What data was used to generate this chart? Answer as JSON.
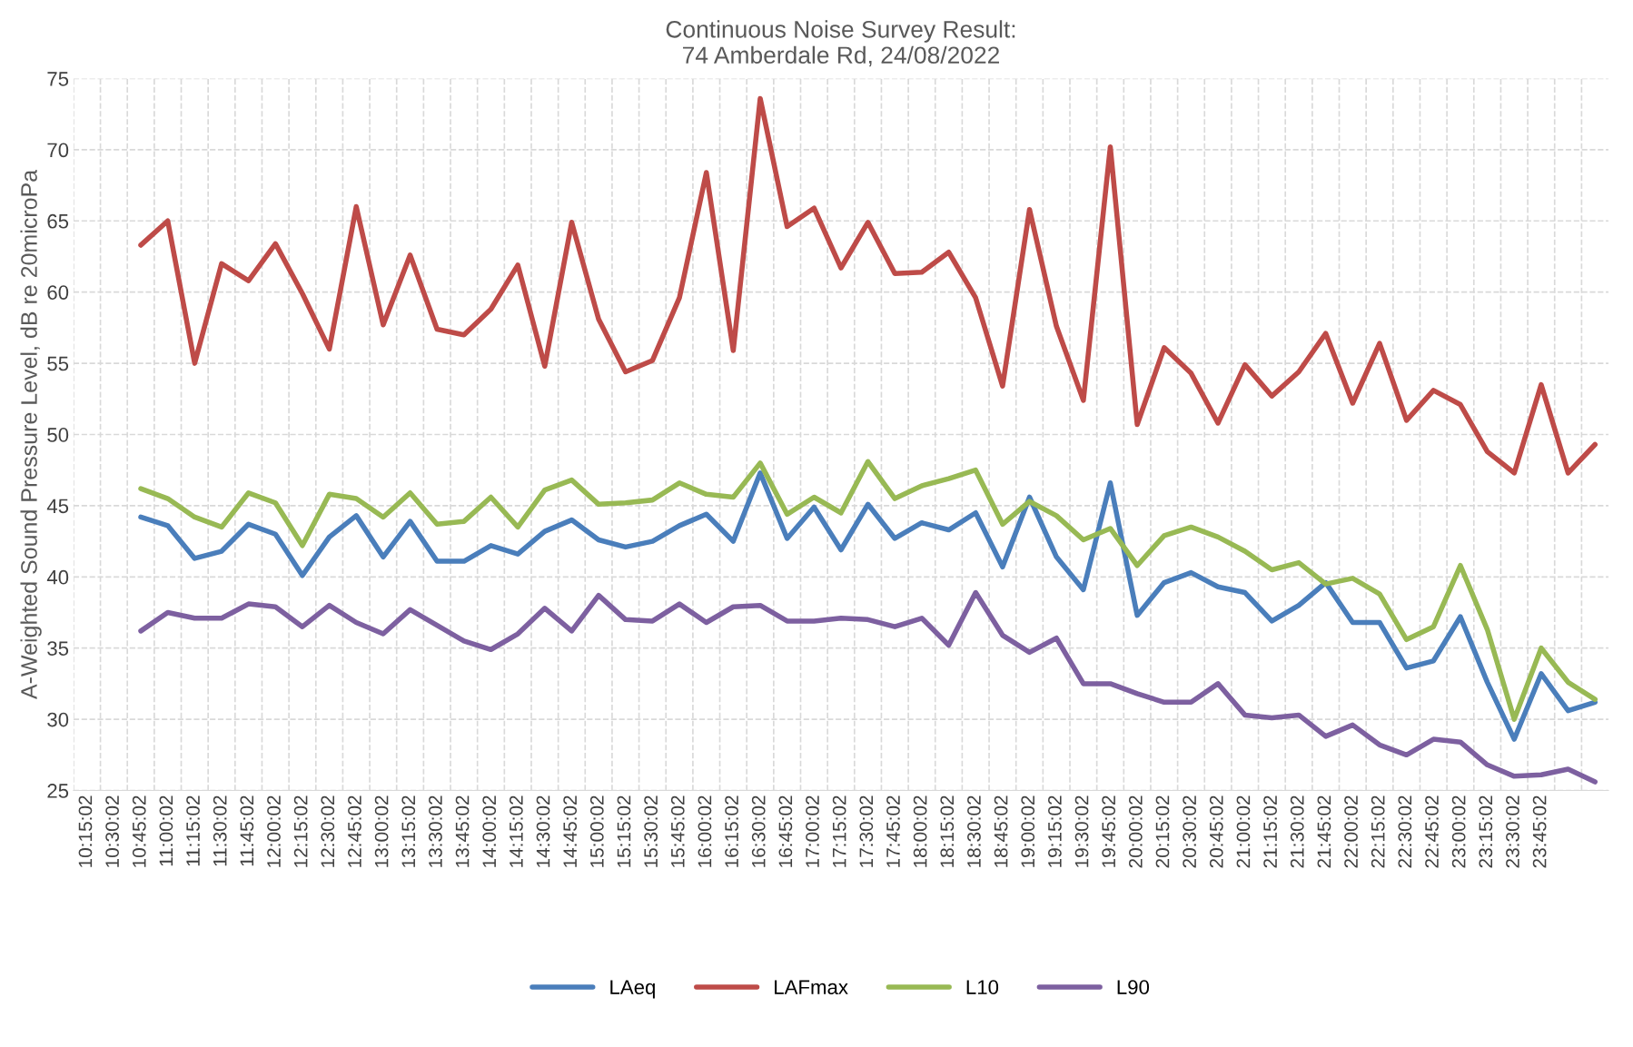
{
  "chart_data": {
    "type": "line",
    "title": "Continuous Noise Survey Result:\n74 Amberdale Rd, 24/08/2022",
    "ylabel": "A-Weighted Sound Pressure Level, dB re 20microPa",
    "categories": [
      "10:15:02",
      "10:30:02",
      "10:45:02",
      "11:00:02",
      "11:15:02",
      "11:30:02",
      "11:45:02",
      "12:00:02",
      "12:15:02",
      "12:30:02",
      "12:45:02",
      "13:00:02",
      "13:15:02",
      "13:30:02",
      "13:45:02",
      "14:00:02",
      "14:15:02",
      "14:30:02",
      "14:45:02",
      "15:00:02",
      "15:15:02",
      "15:30:02",
      "15:45:02",
      "16:00:02",
      "16:15:02",
      "16:30:02",
      "16:45:02",
      "17:00:02",
      "17:15:02",
      "17:30:02",
      "17:45:02",
      "18:00:02",
      "18:15:02",
      "18:30:02",
      "18:45:02",
      "19:00:02",
      "19:15:02",
      "19:30:02",
      "19:45:02",
      "20:00:02",
      "20:15:02",
      "20:30:02",
      "20:45:02",
      "21:00:02",
      "21:15:02",
      "21:30:02",
      "21:45:02",
      "22:00:02",
      "22:15:02",
      "22:30:02",
      "22:45:02",
      "23:00:02",
      "23:15:02",
      "23:30:02",
      "23:45:02",
      null,
      null
    ],
    "series": [
      {
        "name": "LAeq",
        "color": "#4a7ebb",
        "values": [
          null,
          null,
          44.2,
          43.6,
          41.3,
          41.8,
          43.7,
          43.0,
          40.1,
          42.8,
          44.3,
          41.4,
          43.9,
          41.1,
          41.1,
          42.2,
          41.6,
          43.2,
          44.0,
          42.6,
          42.1,
          42.5,
          43.6,
          44.4,
          42.5,
          47.3,
          42.7,
          44.9,
          41.9,
          45.1,
          42.7,
          43.8,
          43.3,
          44.5,
          40.7,
          45.6,
          41.4,
          39.1,
          46.6,
          37.3,
          39.6,
          40.3,
          39.3,
          38.9,
          36.9,
          38.0,
          39.6,
          36.8,
          36.8,
          33.6,
          34.1,
          37.2,
          32.6,
          28.6,
          33.2,
          30.6,
          31.2
        ]
      },
      {
        "name": "LAFmax",
        "color": "#be4b48",
        "values": [
          null,
          null,
          63.3,
          65.0,
          55.0,
          62.0,
          60.8,
          63.4,
          59.9,
          56.0,
          66.0,
          57.7,
          62.6,
          57.4,
          57.0,
          58.8,
          61.9,
          54.8,
          64.9,
          58.1,
          54.4,
          55.2,
          59.6,
          68.4,
          55.9,
          73.6,
          64.6,
          65.9,
          61.7,
          64.9,
          61.3,
          61.4,
          62.8,
          59.6,
          53.4,
          65.8,
          57.6,
          52.4,
          70.2,
          50.7,
          56.1,
          54.3,
          50.8,
          54.9,
          52.7,
          54.4,
          57.1,
          52.2,
          56.4,
          51.0,
          53.1,
          52.1,
          48.8,
          47.3,
          53.5,
          47.3,
          49.3
        ]
      },
      {
        "name": "L10",
        "color": "#98b954",
        "values": [
          null,
          null,
          46.2,
          45.5,
          44.2,
          43.5,
          45.9,
          45.2,
          42.2,
          45.8,
          45.5,
          44.2,
          45.9,
          43.7,
          43.9,
          45.6,
          43.5,
          46.1,
          46.8,
          45.1,
          45.2,
          45.4,
          46.6,
          45.8,
          45.6,
          48.0,
          44.4,
          45.6,
          44.5,
          48.1,
          45.5,
          46.4,
          46.9,
          47.5,
          43.7,
          45.3,
          44.3,
          42.6,
          43.4,
          40.8,
          42.9,
          43.5,
          42.8,
          41.8,
          40.5,
          41.0,
          39.5,
          39.9,
          38.8,
          35.6,
          36.5,
          40.8,
          36.3,
          30.0,
          35.0,
          32.6,
          31.4
        ]
      },
      {
        "name": "L90",
        "color": "#7d60a0",
        "values": [
          null,
          null,
          36.2,
          37.5,
          37.1,
          37.1,
          38.1,
          37.9,
          36.5,
          38.0,
          36.8,
          36.0,
          37.7,
          36.6,
          35.5,
          34.9,
          36.0,
          37.8,
          36.2,
          38.7,
          37.0,
          36.9,
          38.1,
          36.8,
          37.9,
          38.0,
          36.9,
          36.9,
          37.1,
          37.0,
          36.5,
          37.1,
          35.2,
          38.9,
          35.9,
          34.7,
          35.7,
          32.5,
          32.5,
          31.8,
          31.2,
          31.2,
          32.5,
          30.3,
          30.1,
          30.3,
          28.8,
          29.6,
          28.2,
          27.5,
          28.6,
          28.4,
          26.8,
          26.0,
          26.1,
          26.5,
          25.6
        ]
      }
    ],
    "ylim": [
      25,
      75
    ],
    "yticks": [
      25,
      30,
      35,
      40,
      45,
      50,
      55,
      60,
      65,
      70,
      75
    ],
    "grid": true,
    "legend": "bottom",
    "marker": "none",
    "line_style": "solid"
  }
}
